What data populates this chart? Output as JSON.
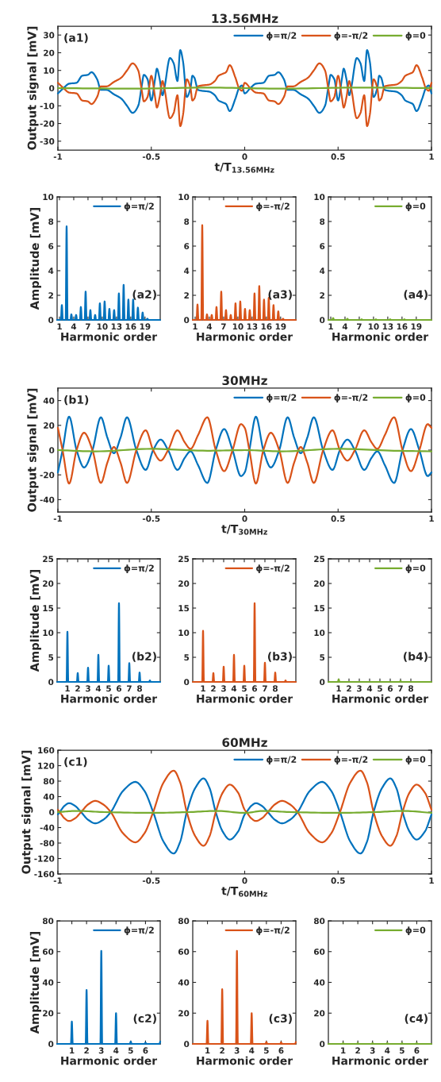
{
  "chart_data": [
    {
      "type": "line",
      "title": "13.56MHz",
      "xlabel": "t/T$_{13.56MHz}$",
      "ylabel": "Output signal [mV]",
      "xlim": [
        -1,
        1
      ],
      "xticks": [
        -1,
        -0.5,
        0,
        0.5,
        1
      ],
      "ylim": [
        -35,
        35
      ],
      "yticks": [
        -30,
        -20,
        -10,
        0,
        10,
        20,
        30
      ],
      "legend": "top right",
      "annotations": [
        "(a1)"
      ],
      "x": [
        -1,
        -0.97,
        -0.94,
        -0.9,
        -0.87,
        -0.84,
        -0.82,
        -0.79,
        -0.77,
        -0.74,
        -0.7,
        -0.66,
        -0.63,
        -0.6,
        -0.57,
        -0.55,
        -0.54,
        -0.52,
        -0.5,
        -0.48,
        -0.47,
        -0.455,
        -0.44,
        -0.43,
        -0.4,
        -0.38,
        -0.36,
        -0.345,
        -0.33,
        -0.31,
        -0.29,
        -0.28,
        -0.27,
        -0.25,
        -0.23,
        -0.19,
        -0.16,
        -0.14,
        -0.12,
        -0.1,
        -0.08,
        -0.05,
        -0.03,
        -0.015,
        0,
        0.03,
        0.06,
        0.1,
        0.13,
        0.16,
        0.18,
        0.21,
        0.23,
        0.26,
        0.3,
        0.34,
        0.37,
        0.4,
        0.43,
        0.45,
        0.46,
        0.48,
        0.5,
        0.52,
        0.53,
        0.545,
        0.56,
        0.57,
        0.6,
        0.62,
        0.64,
        0.655,
        0.67,
        0.69,
        0.71,
        0.72,
        0.73,
        0.75,
        0.77,
        0.81,
        0.84,
        0.86,
        0.88,
        0.9,
        0.92,
        0.95,
        0.97,
        0.985,
        1
      ],
      "series": [
        {
          "name": "ϕ=π/2",
          "color": "#0072bd",
          "values": [
            -3,
            0,
            2.5,
            3,
            7,
            7.5,
            9,
            5,
            -1,
            -1,
            -3.5,
            -6,
            -10,
            -14,
            -10,
            2,
            7.5,
            5,
            -7,
            5,
            11,
            5,
            -4,
            0,
            17,
            14,
            4,
            21.5,
            15,
            -5,
            0,
            7,
            6,
            -1,
            -1.5,
            -2,
            -4,
            -7,
            -8,
            -9,
            -13,
            -6,
            0,
            1.5,
            -3,
            0,
            2.5,
            3,
            7,
            7.5,
            9,
            5,
            -1,
            -1,
            -3.5,
            -6,
            -10,
            -14,
            -10,
            2,
            7.5,
            5,
            -7,
            5,
            11,
            5,
            -4,
            0,
            17,
            14,
            4,
            21.5,
            15,
            -5,
            0,
            7,
            6,
            -1,
            -1.5,
            -2,
            -4,
            -7,
            -8,
            -9,
            -13,
            -6,
            0,
            1.5,
            -3
          ]
        },
        {
          "name": "ϕ=-π/2",
          "color": "#d95319",
          "values": [
            3,
            0,
            -2.5,
            -3,
            -7,
            -7.5,
            -9,
            -5,
            1,
            1,
            3.5,
            6,
            10,
            14,
            10,
            -2,
            -7.5,
            -5,
            7,
            -5,
            -11,
            -5,
            4,
            0,
            -17,
            -14,
            -4,
            -21.5,
            -15,
            5,
            0,
            -7,
            -6,
            1,
            1.5,
            2,
            4,
            7,
            8,
            9,
            13,
            6,
            0,
            -1.5,
            3,
            0,
            -2.5,
            -3,
            -7,
            -7.5,
            -9,
            -5,
            1,
            1,
            3.5,
            6,
            10,
            14,
            10,
            -2,
            -7.5,
            -5,
            7,
            -5,
            -11,
            -5,
            4,
            0,
            -17,
            -14,
            -4,
            -21.5,
            -15,
            5,
            0,
            -7,
            -6,
            1,
            1.5,
            2,
            4,
            7,
            8,
            9,
            13,
            6,
            0,
            -1.5,
            3
          ]
        },
        {
          "name": "ϕ=0",
          "color": "#77ac30",
          "x": [
            -1,
            -0.6,
            -0.2,
            0.2,
            0.6,
            1
          ],
          "values": [
            0,
            -0.3,
            0.3,
            -0.3,
            0.3,
            0
          ]
        }
      ]
    },
    {
      "type": "line",
      "ylabel": "Amplitude [mV]",
      "xlabel": "Harmonic order",
      "xlim": [
        0.5,
        22.2
      ],
      "xticks": [
        1,
        4,
        7,
        10,
        13,
        16,
        19
      ],
      "ylim": [
        0,
        10
      ],
      "yticks": [
        0,
        2,
        4,
        6,
        8,
        10
      ],
      "legend": "top right",
      "annotations": [
        "(a2)"
      ],
      "x": [
        0.5,
        1.3,
        1.5,
        1.7,
        2.3,
        2.5,
        2.7,
        3.3,
        3.5,
        3.7,
        4.3,
        4.5,
        4.7,
        5.3,
        5.5,
        5.7,
        6.3,
        6.5,
        6.7,
        7.3,
        7.5,
        7.7,
        8.3,
        8.5,
        8.7,
        9.3,
        9.5,
        9.7,
        10.3,
        10.5,
        10.7,
        11.3,
        11.5,
        11.7,
        12.3,
        12.5,
        12.7,
        13.3,
        13.5,
        13.7,
        14.3,
        14.5,
        14.7,
        15.3,
        15.5,
        15.7,
        16.3,
        16.5,
        16.7,
        17.3,
        17.5,
        17.7,
        18.3,
        18.5,
        18.7,
        19.3,
        19.5,
        19.7,
        22.2
      ],
      "series": [
        {
          "name": "ϕ=π/2",
          "color": "#0072bd",
          "values": [
            0,
            0,
            1.2,
            0,
            0,
            7.6,
            0,
            0,
            0.45,
            0,
            0,
            0.4,
            0,
            0,
            1.05,
            0,
            0,
            2.3,
            0,
            0,
            0.8,
            0,
            0,
            0.4,
            0,
            0,
            1.35,
            0,
            0,
            1.5,
            0,
            0,
            0.9,
            0,
            0,
            0.8,
            0,
            0,
            2.15,
            0,
            0,
            2.85,
            0,
            0,
            1.65,
            0,
            0,
            1.65,
            0,
            0,
            1.0,
            0,
            0,
            0.6,
            0,
            0,
            0.1,
            0,
            0
          ]
        }
      ]
    },
    {
      "type": "line",
      "xlabel": "Harmonic order",
      "xlim": [
        0.5,
        22.2
      ],
      "xticks": [
        1,
        4,
        7,
        10,
        13,
        16,
        19
      ],
      "ylim": [
        0,
        10
      ],
      "yticks": [
        0,
        2,
        4,
        6,
        8,
        10
      ],
      "legend": "top right",
      "annotations": [
        "(a3)"
      ],
      "x": [
        0.5,
        1.3,
        1.5,
        1.7,
        2.3,
        2.5,
        2.7,
        3.3,
        3.5,
        3.7,
        4.3,
        4.5,
        4.7,
        5.3,
        5.5,
        5.7,
        6.3,
        6.5,
        6.7,
        7.3,
        7.5,
        7.7,
        8.3,
        8.5,
        8.7,
        9.3,
        9.5,
        9.7,
        10.3,
        10.5,
        10.7,
        11.3,
        11.5,
        11.7,
        12.3,
        12.5,
        12.7,
        13.3,
        13.5,
        13.7,
        14.3,
        14.5,
        14.7,
        15.3,
        15.5,
        15.7,
        16.3,
        16.5,
        16.7,
        17.3,
        17.5,
        17.7,
        18.3,
        18.5,
        18.7,
        19.3,
        19.5,
        19.7,
        22.2
      ],
      "series": [
        {
          "name": "ϕ=-π/2",
          "color": "#d95319",
          "values": [
            0,
            0,
            1.25,
            0,
            0,
            7.7,
            0,
            0,
            0.45,
            0,
            0,
            0.4,
            0,
            0,
            1.05,
            0,
            0,
            2.3,
            0,
            0,
            0.8,
            0,
            0,
            0.4,
            0,
            0,
            1.35,
            0,
            0,
            1.5,
            0,
            0,
            0.9,
            0,
            0,
            0.8,
            0,
            0,
            2.15,
            0,
            0,
            2.75,
            0,
            0,
            1.65,
            0,
            0,
            1.8,
            0,
            0,
            1.2,
            0,
            0,
            0.7,
            0,
            0,
            0.1,
            0,
            0
          ]
        }
      ]
    },
    {
      "type": "line",
      "xlabel": "Harmonic order",
      "xlim": [
        0.5,
        22.2
      ],
      "xticks": [
        1,
        4,
        7,
        10,
        13,
        16,
        19
      ],
      "ylim": [
        0,
        10
      ],
      "yticks": [
        0,
        2,
        4,
        6,
        8,
        10
      ],
      "legend": "top right",
      "annotations": [
        "(a4)"
      ],
      "x": [
        0.5,
        1.3,
        1.5,
        1.7,
        4.3,
        4.5,
        4.7,
        7.3,
        7.5,
        7.7,
        10.3,
        10.5,
        10.7,
        13.3,
        13.5,
        13.7,
        16.3,
        16.5,
        16.7,
        22.2
      ],
      "series": [
        {
          "name": "ϕ=0",
          "color": "#77ac30",
          "values": [
            0,
            0,
            0.15,
            0,
            0,
            0.1,
            0,
            0,
            0.05,
            0,
            0,
            0.05,
            0,
            0,
            0.05,
            0,
            0,
            0.05,
            0,
            0
          ]
        }
      ]
    },
    {
      "type": "line",
      "title": "30MHz",
      "xlabel": "t/T$_{30MHz}$",
      "ylabel": "Output signal [mV]",
      "xlim": [
        -1,
        1
      ],
      "xticks": [
        -1,
        -0.5,
        0,
        0.5,
        1
      ],
      "ylim": [
        -50,
        50
      ],
      "yticks": [
        -40,
        -20,
        0,
        20,
        40
      ],
      "legend": "top right",
      "annotations": [
        "(b1)"
      ],
      "x": [
        -1,
        -0.975,
        -0.94,
        -0.9,
        -0.86,
        -0.815,
        -0.77,
        -0.735,
        -0.7,
        -0.665,
        -0.63,
        -0.58,
        -0.53,
        -0.49,
        -0.45,
        -0.41,
        -0.36,
        -0.32,
        -0.29,
        -0.25,
        -0.2,
        -0.155,
        -0.11,
        -0.065,
        -0.02,
        0,
        0.025,
        0.06,
        0.1,
        0.14,
        0.185,
        0.23,
        0.265,
        0.3,
        0.335,
        0.37,
        0.42,
        0.47,
        0.51,
        0.55,
        0.59,
        0.64,
        0.68,
        0.71,
        0.75,
        0.8,
        0.845,
        0.89,
        0.935,
        0.98,
        1
      ],
      "series": [
        {
          "name": "ϕ=π/2",
          "color": "#0072bd",
          "values": [
            -18,
            0,
            27,
            0,
            -14,
            0,
            26.5,
            10,
            -2.5,
            10,
            26.5,
            0,
            -16,
            0,
            8.5,
            0,
            -16,
            -6,
            -1,
            -12,
            -26.5,
            0,
            17,
            0,
            -21,
            -18,
            0,
            27,
            0,
            -14,
            0,
            26.5,
            10,
            -2.5,
            10,
            26.5,
            0,
            -16,
            0,
            8.5,
            0,
            -16,
            -6,
            -1,
            -12,
            -26.5,
            0,
            17,
            0,
            -21,
            -18
          ]
        },
        {
          "name": "ϕ=-π/2",
          "color": "#d95319",
          "values": [
            18,
            0,
            -27,
            0,
            14,
            0,
            -26.5,
            -10,
            2.5,
            -10,
            -26.5,
            0,
            16,
            0,
            -8.5,
            0,
            16,
            6,
            1,
            12,
            26.5,
            0,
            -17,
            0,
            21,
            18,
            0,
            -27,
            0,
            14,
            0,
            -26.5,
            -10,
            2.5,
            -10,
            -26.5,
            0,
            16,
            0,
            -8.5,
            0,
            16,
            6,
            1,
            12,
            26.5,
            0,
            -17,
            0,
            21,
            18
          ]
        },
        {
          "name": "ϕ=0",
          "color": "#77ac30",
          "x": [
            -1,
            -0.8,
            -0.5,
            -0.2,
            0,
            0.2,
            0.5,
            0.8,
            1
          ],
          "values": [
            0,
            -1,
            1,
            -0.5,
            0,
            -1,
            1,
            -0.5,
            -1
          ]
        }
      ]
    },
    {
      "type": "line",
      "ylabel": "Amplitude [mV]",
      "xlabel": "Harmonic order",
      "xlim": [
        0,
        10
      ],
      "xticks": [
        1,
        2,
        3,
        4,
        5,
        6,
        7,
        8
      ],
      "ylim": [
        0,
        25
      ],
      "yticks": [
        0,
        5,
        10,
        15,
        20,
        25
      ],
      "legend": "top right",
      "annotations": [
        "(b2)"
      ],
      "x": [
        0,
        0.92,
        1,
        1.08,
        1.92,
        2,
        2.08,
        2.92,
        3,
        3.08,
        3.92,
        4,
        4.08,
        4.92,
        5,
        5.08,
        5.92,
        6,
        6.08,
        6.92,
        7,
        7.08,
        7.92,
        8,
        8.08,
        8.92,
        9,
        9.08,
        10
      ],
      "series": [
        {
          "name": "ϕ=π/2",
          "color": "#0072bd",
          "values": [
            0,
            0,
            10.2,
            0,
            0,
            1.8,
            0,
            0,
            2.9,
            0,
            0,
            5.5,
            0,
            0,
            3.3,
            0,
            0,
            16,
            0,
            0,
            3.8,
            0,
            0,
            1.9,
            0,
            0,
            0.3,
            0,
            0
          ]
        }
      ]
    },
    {
      "type": "line",
      "xlabel": "Harmonic order",
      "xlim": [
        0,
        10
      ],
      "xticks": [
        1,
        2,
        3,
        4,
        5,
        6,
        7,
        8
      ],
      "ylim": [
        0,
        25
      ],
      "yticks": [
        0,
        5,
        10,
        15,
        20,
        25
      ],
      "legend": "top right",
      "annotations": [
        "(b3)"
      ],
      "x": [
        0,
        0.92,
        1,
        1.08,
        1.92,
        2,
        2.08,
        2.92,
        3,
        3.08,
        3.92,
        4,
        4.08,
        4.92,
        5,
        5.08,
        5.92,
        6,
        6.08,
        6.92,
        7,
        7.08,
        7.92,
        8,
        8.08,
        8.92,
        9,
        9.08,
        10
      ],
      "series": [
        {
          "name": "ϕ=-π/2",
          "color": "#d95319",
          "values": [
            0,
            0,
            10.4,
            0,
            0,
            1.8,
            0,
            0,
            3.1,
            0,
            0,
            5.5,
            0,
            0,
            3.3,
            0,
            0,
            16,
            0,
            0,
            3.9,
            0,
            0,
            1.9,
            0,
            0,
            0.3,
            0,
            0
          ]
        }
      ]
    },
    {
      "type": "line",
      "xlabel": "Harmonic order",
      "xlim": [
        0,
        10
      ],
      "xticks": [
        1,
        2,
        3,
        4,
        5,
        6,
        7,
        8
      ],
      "ylim": [
        0,
        25
      ],
      "yticks": [
        0,
        5,
        10,
        15,
        20,
        25
      ],
      "legend": "top right",
      "annotations": [
        "(b4)"
      ],
      "x": [
        0,
        0.92,
        1,
        1.08,
        6.92,
        7,
        7.08,
        10
      ],
      "series": [
        {
          "name": "ϕ=0",
          "color": "#77ac30",
          "values": [
            0,
            0,
            0.5,
            0,
            0,
            0.2,
            0,
            0
          ]
        }
      ]
    },
    {
      "type": "line",
      "title": "60MHz",
      "xlabel": "t/T$_{60MHz}$",
      "ylabel": "Output signal [mV]",
      "xlim": [
        -1,
        1
      ],
      "xticks": [
        -1,
        -0.5,
        0,
        0.5,
        1
      ],
      "ylim": [
        -160,
        160
      ],
      "yticks": [
        -160,
        -120,
        -80,
        -40,
        0,
        40,
        80,
        120,
        160
      ],
      "legend": "top right",
      "annotations": [
        "(c1)"
      ],
      "x": [
        -1,
        -0.99,
        -0.965,
        -0.94,
        -0.908,
        -0.876,
        -0.838,
        -0.8,
        -0.758,
        -0.717,
        -0.651,
        -0.585,
        -0.537,
        -0.49,
        -0.435,
        -0.38,
        -0.345,
        -0.31,
        -0.265,
        -0.22,
        -0.188,
        -0.155,
        -0.118,
        -0.08,
        -0.035,
        0,
        0.01,
        0.035,
        0.06,
        0.092,
        0.124,
        0.162,
        0.2,
        0.242,
        0.283,
        0.349,
        0.415,
        0.463,
        0.51,
        0.565,
        0.62,
        0.655,
        0.69,
        0.735,
        0.78,
        0.812,
        0.845,
        0.882,
        0.92,
        0.965,
        1
      ],
      "series": [
        {
          "name": "ϕ=π/2",
          "color": "#0072bd",
          "values": [
            -6,
            0,
            16,
            23,
            16,
            0,
            -20,
            -29,
            -20,
            0,
            55,
            78,
            55,
            0,
            -76,
            -107,
            -76,
            0,
            62,
            87,
            62,
            0,
            -50,
            -71,
            -50,
            -6,
            0,
            16,
            23,
            16,
            0,
            -20,
            -29,
            -20,
            0,
            55,
            78,
            55,
            0,
            -76,
            -107,
            -76,
            0,
            62,
            87,
            62,
            0,
            -50,
            -71,
            -50,
            -6
          ]
        },
        {
          "name": "ϕ=-π/2",
          "color": "#d95319",
          "values": [
            6,
            0,
            -16,
            -23,
            -16,
            0,
            20,
            29,
            20,
            0,
            -55,
            -78,
            -55,
            0,
            76,
            107,
            76,
            0,
            -62,
            -87,
            -62,
            0,
            50,
            71,
            50,
            6,
            0,
            -16,
            -23,
            -16,
            0,
            20,
            29,
            20,
            0,
            -55,
            -78,
            -55,
            0,
            76,
            107,
            76,
            0,
            -62,
            -87,
            -62,
            0,
            50,
            71,
            50,
            6
          ]
        },
        {
          "name": "ϕ=0",
          "color": "#77ac30",
          "x": [
            -1,
            -0.9,
            -0.75,
            -0.5,
            -0.3,
            -0.15,
            0,
            0.1,
            0.25,
            0.5,
            0.7,
            0.85,
            1
          ],
          "values": [
            0,
            3,
            0,
            -2,
            0,
            3,
            -2,
            3,
            0,
            -2,
            0,
            3,
            -2
          ]
        }
      ]
    },
    {
      "type": "line",
      "ylabel": "Amplitude [mV]",
      "xlabel": "Harmonic order",
      "xlim": [
        0,
        7
      ],
      "xticks": [
        1,
        2,
        3,
        4,
        5,
        6
      ],
      "ylim": [
        0,
        80
      ],
      "yticks": [
        0,
        20,
        40,
        60,
        80
      ],
      "legend": "top right",
      "annotations": [
        "(c2)"
      ],
      "x": [
        0,
        0.94,
        1,
        1.06,
        1.94,
        2,
        2.06,
        2.94,
        3,
        3.06,
        3.94,
        4,
        4.06,
        4.94,
        5,
        5.06,
        5.94,
        6,
        6.06,
        6.94,
        7
      ],
      "series": [
        {
          "name": "ϕ=π/2",
          "color": "#0072bd",
          "values": [
            0,
            0,
            14.5,
            0,
            0,
            35,
            0,
            0,
            60.5,
            0,
            0,
            20,
            0,
            0,
            1.5,
            0,
            0,
            0.8,
            0,
            0,
            1.5
          ]
        }
      ]
    },
    {
      "type": "line",
      "xlabel": "Harmonic order",
      "xlim": [
        0,
        7
      ],
      "xticks": [
        1,
        2,
        3,
        4,
        5,
        6
      ],
      "ylim": [
        0,
        80
      ],
      "yticks": [
        0,
        20,
        40,
        60,
        80
      ],
      "legend": "top right",
      "annotations": [
        "(c3)"
      ],
      "x": [
        0,
        0.94,
        1,
        1.06,
        1.94,
        2,
        2.06,
        2.94,
        3,
        3.06,
        3.94,
        4,
        4.06,
        4.94,
        5,
        5.06,
        5.94,
        6,
        6.06,
        6.94,
        7
      ],
      "series": [
        {
          "name": "ϕ=-π/2",
          "color": "#d95319",
          "values": [
            0,
            0,
            15,
            0,
            0,
            35.5,
            0,
            0,
            60.5,
            0,
            0,
            20,
            0,
            0,
            1.2,
            0,
            0,
            1,
            0,
            0,
            1.2
          ]
        }
      ]
    },
    {
      "type": "line",
      "xlabel": "Harmonic order",
      "xlim": [
        0,
        7
      ],
      "xticks": [
        1,
        2,
        3,
        4,
        5,
        6
      ],
      "ylim": [
        0,
        80
      ],
      "yticks": [
        0,
        20,
        40,
        60,
        80
      ],
      "legend": "top right",
      "annotations": [
        "(c4)"
      ],
      "x": [
        0,
        0.94,
        1,
        1.06,
        1.94,
        2,
        2.06,
        2.94,
        3,
        3.06,
        3.94,
        4,
        4.06,
        4.94,
        5,
        5.06,
        5.94,
        6,
        6.06,
        7
      ],
      "series": [
        {
          "name": "ϕ=0",
          "color": "#77ac30",
          "values": [
            0,
            0,
            0.5,
            0,
            0,
            0.5,
            0,
            0,
            0.5,
            0,
            0,
            0.5,
            0,
            0,
            0.5,
            0,
            0,
            0.5,
            0,
            0
          ]
        }
      ]
    }
  ]
}
